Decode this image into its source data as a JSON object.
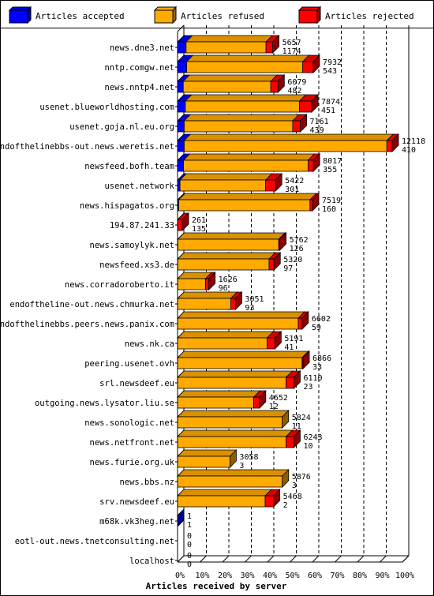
{
  "chart_data": {
    "type": "bar",
    "stacked": true,
    "orientation": "horizontal",
    "title": "",
    "xlabel": "Articles received by server",
    "ylabel": "",
    "xlim": [
      0,
      100
    ],
    "x_ticks": [
      "0%",
      "10%",
      "20%",
      "30%",
      "40%",
      "50%",
      "60%",
      "70%",
      "80%",
      "90%",
      "100%"
    ],
    "grid": "vertical dashed",
    "legend_position": "top",
    "series": [
      {
        "name": "Articles accepted",
        "color": "#0000ff"
      },
      {
        "name": "Articles refused",
        "color": "#ffaa00"
      },
      {
        "name": "Articles rejected",
        "color": "#ff0000"
      }
    ],
    "rows": [
      {
        "server": "news.dne3.net",
        "accepted": 450,
        "refused": 4200,
        "rejected": 350,
        "total_label": "5657",
        "second_label": "1174"
      },
      {
        "server": "nntp.comgw.net",
        "accepted": 480,
        "refused": 6100,
        "rejected": 550,
        "total_label": "7932",
        "second_label": "543"
      },
      {
        "server": "news.nntp4.net",
        "accepted": 300,
        "refused": 4600,
        "rejected": 380,
        "total_label": "6079",
        "second_label": "482"
      },
      {
        "server": "usenet.blueworldhosting.com",
        "accepted": 410,
        "refused": 6000,
        "rejected": 640,
        "total_label": "7874",
        "second_label": "451"
      },
      {
        "server": "usenet.goja.nl.eu.org",
        "accepted": 350,
        "refused": 5700,
        "rejected": 400,
        "total_label": "7161",
        "second_label": "439"
      },
      {
        "server": "endofthelinebbs-out.news.weretis.net",
        "accepted": 350,
        "refused": 10650,
        "rejected": 280,
        "total_label": "12118",
        "second_label": "410"
      },
      {
        "server": "newsfeed.bofh.team",
        "accepted": 310,
        "refused": 6550,
        "rejected": 280,
        "total_label": "8017",
        "second_label": "355"
      },
      {
        "server": "usenet.network",
        "accepted": 130,
        "refused": 4500,
        "rejected": 520,
        "total_label": "5422",
        "second_label": "301"
      },
      {
        "server": "news.hispagatos.org",
        "accepted": 60,
        "refused": 6900,
        "rejected": 130,
        "total_label": "7519",
        "second_label": "160"
      },
      {
        "server": "194.87.241.33",
        "accepted": 10,
        "refused": 0,
        "rejected": 240,
        "total_label": "261",
        "second_label": "135"
      },
      {
        "server": "news.samoylyk.net",
        "accepted": 15,
        "refused": 5300,
        "rejected": 60,
        "total_label": "5762",
        "second_label": "126"
      },
      {
        "server": "newsfeed.xs3.de",
        "accepted": 10,
        "refused": 4800,
        "rejected": 260,
        "total_label": "5320",
        "second_label": "97"
      },
      {
        "server": "news.corradoroberto.it",
        "accepted": 5,
        "refused": 1460,
        "rejected": 180,
        "total_label": "1626",
        "second_label": "96"
      },
      {
        "server": "endoftheline-out.news.chmurka.net",
        "accepted": 5,
        "refused": 2790,
        "rejected": 250,
        "total_label": "3051",
        "second_label": "93"
      },
      {
        "server": "endofthelinebbs.peers.news.panix.com",
        "accepted": 5,
        "refused": 6340,
        "rejected": 200,
        "total_label": "6602",
        "second_label": "59"
      },
      {
        "server": "news.nk.ca",
        "accepted": 5,
        "refused": 4700,
        "rejected": 410,
        "total_label": "5191",
        "second_label": "41"
      },
      {
        "server": "peering.usenet.ovh",
        "accepted": 5,
        "refused": 6540,
        "rejected": 50,
        "total_label": "6866",
        "second_label": "33"
      },
      {
        "server": "srl.newsdeef.eu",
        "accepted": 5,
        "refused": 5700,
        "rejected": 410,
        "total_label": "6110",
        "second_label": "23"
      },
      {
        "server": "outgoing.news.lysator.liu.se",
        "accepted": 5,
        "refused": 4000,
        "rejected": 300,
        "total_label": "4652",
        "second_label": "12"
      },
      {
        "server": "news.sonologic.net",
        "accepted": 5,
        "refused": 5500,
        "rejected": 0,
        "total_label": "5824",
        "second_label": "11"
      },
      {
        "server": "news.netfront.net",
        "accepted": 5,
        "refused": 5700,
        "rejected": 410,
        "total_label": "6243",
        "second_label": "10"
      },
      {
        "server": "news.furie.org.uk",
        "accepted": 5,
        "refused": 2750,
        "rejected": 0,
        "total_label": "3058",
        "second_label": "3"
      },
      {
        "server": "news.bbs.nz",
        "accepted": 5,
        "refused": 5500,
        "rejected": 0,
        "total_label": "5876",
        "second_label": "3"
      },
      {
        "server": "srv.newsdeef.eu",
        "accepted": 5,
        "refused": 4600,
        "rejected": 440,
        "total_label": "5468",
        "second_label": "2"
      },
      {
        "server": "m68k.vk3heg.net",
        "accepted": 1,
        "refused": 0,
        "rejected": 0,
        "total_label": "1",
        "second_label": "1"
      },
      {
        "server": "eotl-out.news.tnetconsulting.net",
        "accepted": 0,
        "refused": 0,
        "rejected": 0,
        "total_label": "0",
        "second_label": "0"
      },
      {
        "server": "localhost",
        "accepted": 0,
        "refused": 0,
        "rejected": 0,
        "total_label": "0",
        "second_label": "0"
      }
    ]
  }
}
